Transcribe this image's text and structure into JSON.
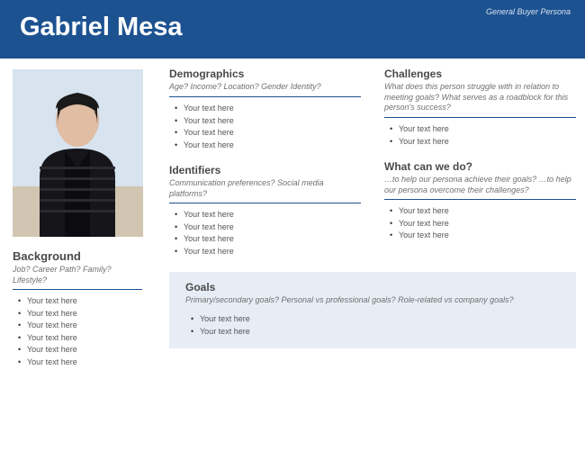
{
  "colors": {
    "header_bg": "#1d5291",
    "header_text": "#ffffff",
    "rule": "#1d5291",
    "goals_bg": "#e6edf5",
    "subtitle_text": "#707070",
    "title_text": "#4a4a4a",
    "bullet_text": "#555555"
  },
  "header": {
    "title": "Gabriel Mesa",
    "subtitle": "General Buyer Persona"
  },
  "sidebar": {
    "photo_alt": "Persona photo",
    "background": {
      "title": "Background",
      "subtitle": "Job? Career Path? Family? Lifestyle?",
      "items": [
        "Your text here",
        "Your text here",
        "Your text here",
        "Your text here",
        "Your text here",
        "Your text here"
      ]
    }
  },
  "left_col": {
    "demographics": {
      "title": "Demographics",
      "subtitle": "Age? Income? Location? Gender Identity?",
      "items": [
        "Your text here",
        "Your text here",
        "Your text here",
        "Your text here"
      ]
    },
    "identifiers": {
      "title": "Identifiers",
      "subtitle": "Communication preferences? Social media platforms?",
      "items": [
        "Your text here",
        "Your text here",
        "Your text here",
        "Your text here"
      ]
    }
  },
  "right_col": {
    "challenges": {
      "title": "Challenges",
      "subtitle": "What does this person struggle with in relation to meeting goals? What serves as a roadblock for this person's success?",
      "items": [
        "Your text here",
        "Your text here"
      ]
    },
    "whatcanwedo": {
      "title": "What can we do?",
      "subtitle": "…to help our persona achieve their goals? …to help our persona overcome their challenges?",
      "items": [
        "Your text here",
        "Your text here",
        "Your text here"
      ]
    }
  },
  "goals": {
    "title": "Goals",
    "subtitle": "Primary/secondary goals?  Personal vs professional goals? Role-related vs company goals?",
    "items": [
      "Your text here",
      "Your text here"
    ]
  }
}
